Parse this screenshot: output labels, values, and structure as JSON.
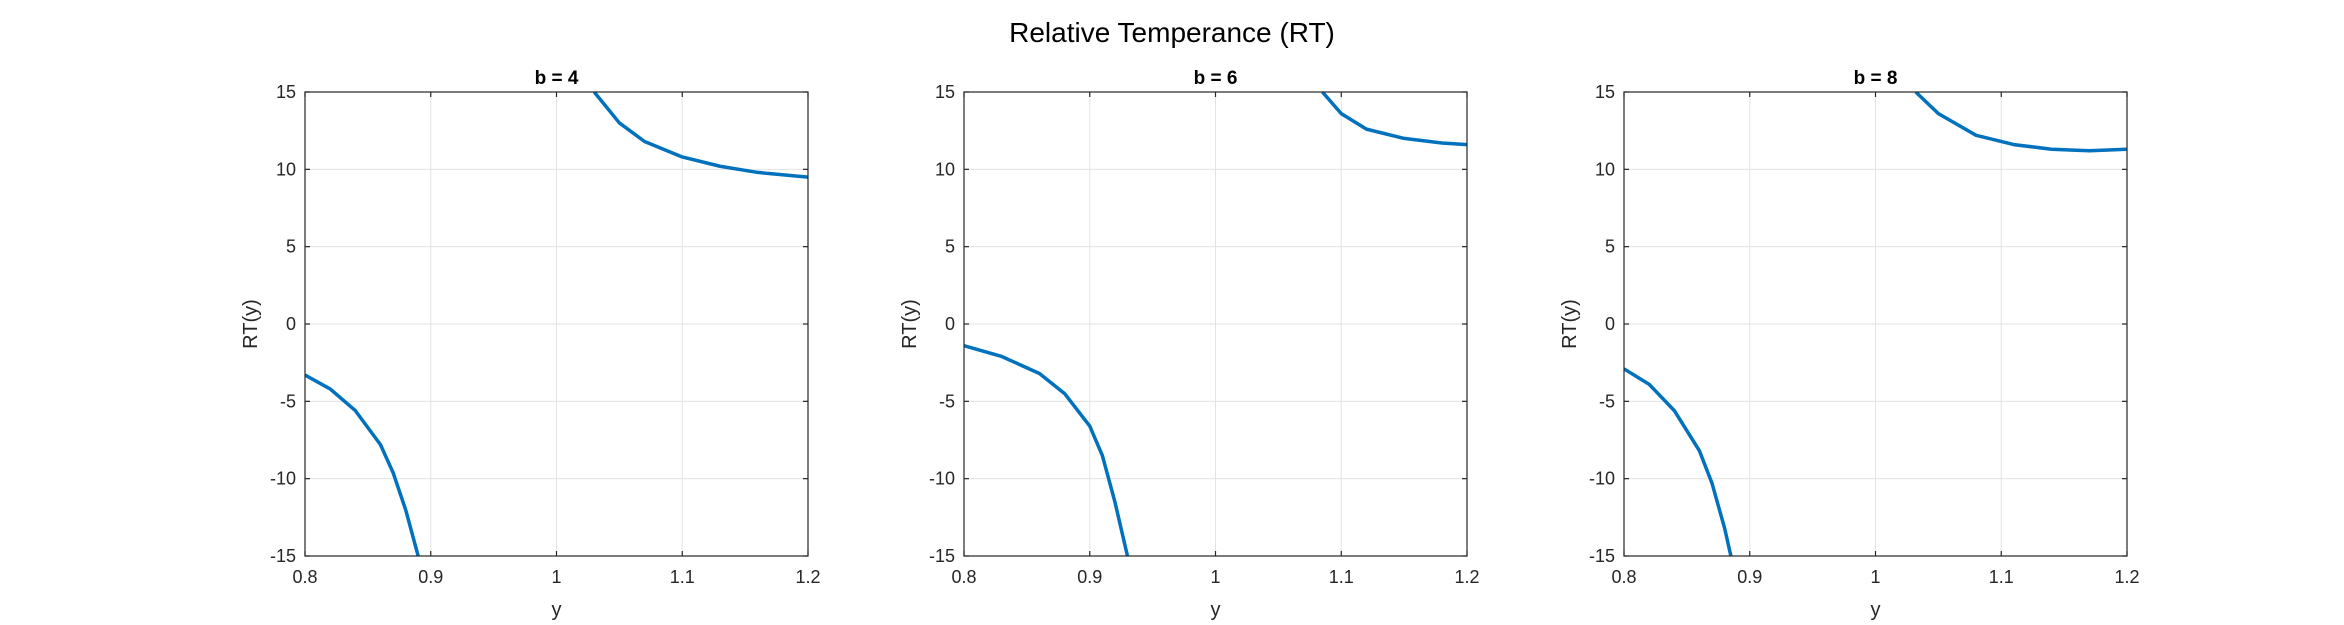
{
  "figure": {
    "title": "Relative Temperance (RT)"
  },
  "chart_data": [
    {
      "type": "line",
      "title": "b = 4",
      "xlabel": "y",
      "ylabel": "RT(y)",
      "xlim": [
        0.8,
        1.2
      ],
      "ylim": [
        -15,
        15
      ],
      "xticks": [
        0.8,
        0.9,
        1,
        1.1,
        1.2
      ],
      "xtick_labels": [
        "0.8",
        "0.9",
        "1",
        "1.1",
        "1.2"
      ],
      "yticks": [
        -15,
        -10,
        -5,
        0,
        5,
        10,
        15
      ],
      "ytick_labels": [
        "-15",
        "-10",
        "-5",
        "0",
        "5",
        "10",
        "15"
      ],
      "grid": true,
      "color": "#0072BD",
      "series": [
        {
          "x": [
            0.8,
            0.82,
            0.84,
            0.86,
            0.87,
            0.88,
            0.89
          ],
          "y": [
            -3.3,
            -4.2,
            -5.6,
            -7.8,
            -9.6,
            -12.0,
            -15.0
          ]
        },
        {
          "x": [
            1.03,
            1.05,
            1.07,
            1.1,
            1.13,
            1.16,
            1.2
          ],
          "y": [
            15.0,
            13.0,
            11.8,
            10.8,
            10.2,
            9.8,
            9.5
          ]
        }
      ]
    },
    {
      "type": "line",
      "title": "b = 6",
      "xlabel": "y",
      "ylabel": "RT(y)",
      "xlim": [
        0.8,
        1.2
      ],
      "ylim": [
        -15,
        15
      ],
      "xticks": [
        0.8,
        0.9,
        1,
        1.1,
        1.2
      ],
      "xtick_labels": [
        "0.8",
        "0.9",
        "1",
        "1.1",
        "1.2"
      ],
      "yticks": [
        -15,
        -10,
        -5,
        0,
        5,
        10,
        15
      ],
      "ytick_labels": [
        "-15",
        "-10",
        "-5",
        "0",
        "5",
        "10",
        "15"
      ],
      "grid": true,
      "color": "#0072BD",
      "series": [
        {
          "x": [
            0.8,
            0.83,
            0.86,
            0.88,
            0.9,
            0.91,
            0.92,
            0.93
          ],
          "y": [
            -1.4,
            -2.1,
            -3.2,
            -4.5,
            -6.6,
            -8.5,
            -11.5,
            -15.0
          ]
        },
        {
          "x": [
            1.085,
            1.1,
            1.12,
            1.15,
            1.18,
            1.2
          ],
          "y": [
            15.0,
            13.6,
            12.6,
            12.0,
            11.7,
            11.6
          ]
        }
      ]
    },
    {
      "type": "line",
      "title": "b = 8",
      "xlabel": "y",
      "ylabel": "RT(y)",
      "xlim": [
        0.8,
        1.2
      ],
      "ylim": [
        -15,
        15
      ],
      "xticks": [
        0.8,
        0.9,
        1,
        1.1,
        1.2
      ],
      "xtick_labels": [
        "0.8",
        "0.9",
        "1",
        "1.1",
        "1.2"
      ],
      "yticks": [
        -15,
        -10,
        -5,
        0,
        5,
        10,
        15
      ],
      "ytick_labels": [
        "-15",
        "-10",
        "-5",
        "0",
        "5",
        "10",
        "15"
      ],
      "grid": true,
      "color": "#0072BD",
      "series": [
        {
          "x": [
            0.8,
            0.82,
            0.84,
            0.86,
            0.87,
            0.88,
            0.885
          ],
          "y": [
            -2.9,
            -3.9,
            -5.6,
            -8.2,
            -10.3,
            -13.2,
            -15.0
          ]
        },
        {
          "x": [
            1.032,
            1.05,
            1.08,
            1.11,
            1.14,
            1.17,
            1.2
          ],
          "y": [
            15.0,
            13.6,
            12.2,
            11.6,
            11.3,
            11.2,
            11.3
          ]
        }
      ]
    }
  ]
}
